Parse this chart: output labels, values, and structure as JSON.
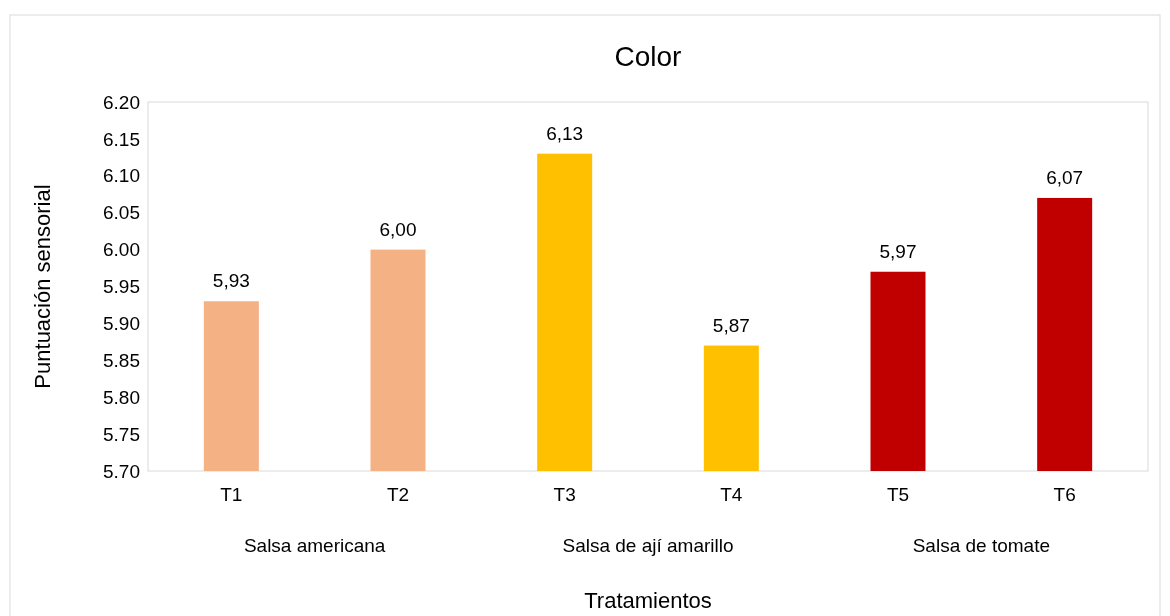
{
  "chart_data": {
    "type": "bar",
    "title": "Color",
    "xlabel": "Tratamientos",
    "ylabel": "Puntuación sensorial",
    "categories": [
      "T1",
      "T2",
      "T3",
      "T4",
      "T5",
      "T6"
    ],
    "values": [
      5.93,
      6.0,
      6.13,
      5.87,
      5.97,
      6.07
    ],
    "colors": [
      "#f4b183",
      "#f4b183",
      "#ffc000",
      "#ffc000",
      "#c00000",
      "#c00000"
    ],
    "value_labels": [
      "5,93",
      "6,00",
      "6,13",
      "5,87",
      "5,97",
      "6,07"
    ],
    "annotations": [
      "Salsa americana",
      "Salsa de ají amarillo",
      "Salsa de tomate"
    ],
    "ylim": [
      5.7,
      6.2
    ],
    "yticks": [
      {
        "value": 5.7,
        "label": "5.70"
      },
      {
        "value": 5.75,
        "label": "5.75"
      },
      {
        "value": 5.8,
        "label": "5.80"
      },
      {
        "value": 5.85,
        "label": "5.85"
      },
      {
        "value": 5.9,
        "label": "5.90"
      },
      {
        "value": 5.95,
        "label": "5.95"
      },
      {
        "value": 6.0,
        "label": "6.00"
      },
      {
        "value": 6.05,
        "label": "6.05"
      },
      {
        "value": 6.1,
        "label": "6.10"
      },
      {
        "value": 6.15,
        "label": "6.15"
      },
      {
        "value": 6.2,
        "label": "6.20"
      }
    ],
    "grid": false
  }
}
